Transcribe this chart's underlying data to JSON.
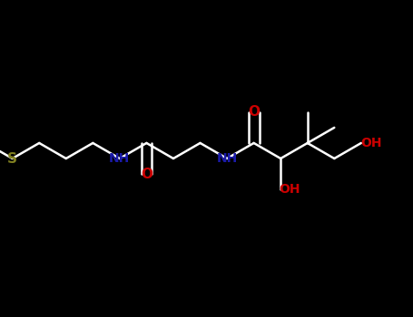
{
  "background_color": "#000000",
  "bond_color": "#ffffff",
  "N_color": "#1a1aaa",
  "O_color": "#cc0000",
  "S_color": "#808020",
  "figsize": [
    4.55,
    3.5
  ],
  "dpi": 100,
  "xlim": [
    0,
    10
  ],
  "ylim": [
    0,
    7
  ],
  "font_size": 11
}
